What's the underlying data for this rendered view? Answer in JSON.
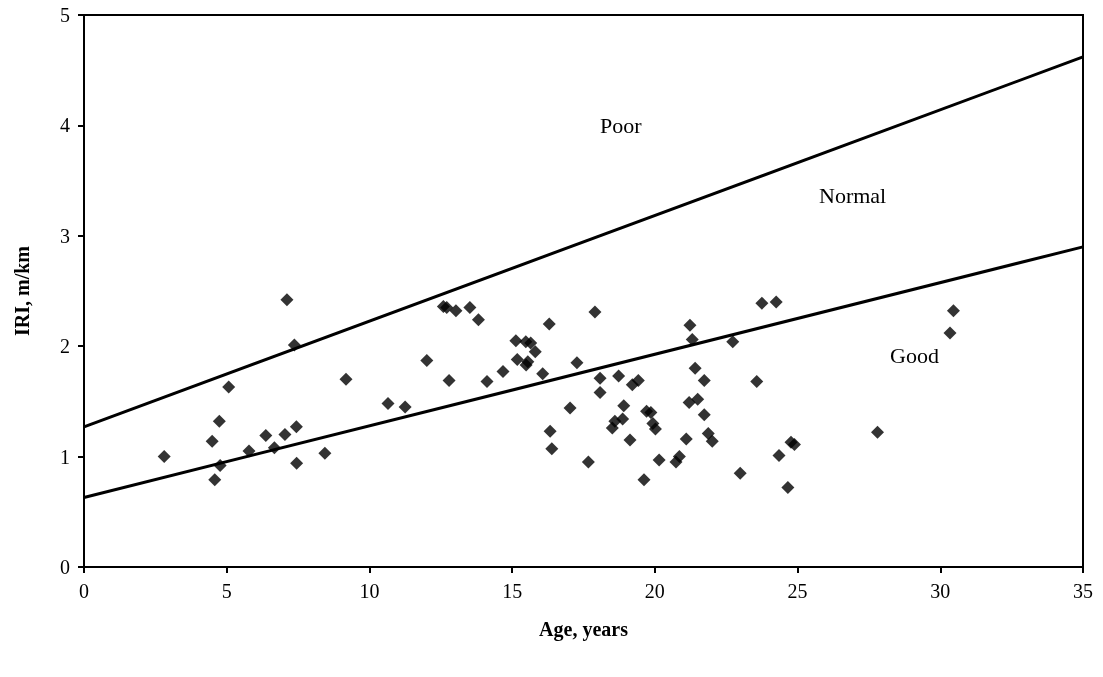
{
  "chart_data": {
    "type": "scatter",
    "xlabel": "Age, years",
    "ylabel": "IRI, m/km",
    "xlim": [
      0,
      35
    ],
    "xticks": [
      0,
      5,
      10,
      15,
      20,
      25,
      30,
      35
    ],
    "ylim": [
      0,
      5
    ],
    "yticks": [
      0,
      1,
      2,
      3,
      4,
      5
    ],
    "grid": false,
    "marker": "diamond",
    "series": [
      {
        "color": "#000000",
        "x": [
          2.81,
          4.49,
          4.58,
          4.74,
          4.77,
          5.07,
          5.78,
          6.37,
          6.67,
          7.04,
          7.11,
          7.37,
          7.44,
          7.45,
          8.44,
          9.18,
          10.65,
          11.25,
          12.01,
          12.59,
          12.71,
          13.03,
          13.52,
          13.82,
          12.79,
          14.12,
          14.68,
          15.13,
          15.18,
          15.48,
          15.65,
          15.81,
          15.55,
          15.49,
          16.07,
          16.3,
          16.33,
          16.39,
          17.03,
          17.27,
          17.67,
          17.9,
          18.08,
          18.08,
          18.73,
          18.91,
          19.21,
          19.42,
          18.51,
          18.6,
          18.87,
          19.13,
          19.62,
          19.71,
          19.86,
          19.93,
          20.02,
          20.15,
          20.74,
          20.86,
          21.1,
          21.2,
          21.23,
          21.31,
          21.41,
          21.5,
          21.73,
          21.73,
          21.87,
          22.01,
          22.73,
          22.99,
          23.57,
          23.75,
          24.25,
          24.35,
          24.66,
          24.77,
          24.89,
          27.8,
          30.34,
          30.46
        ],
        "values": [
          1.0,
          1.14,
          0.79,
          1.32,
          0.92,
          1.63,
          1.05,
          1.19,
          1.08,
          1.2,
          2.42,
          2.01,
          1.27,
          0.94,
          1.03,
          1.7,
          1.48,
          1.45,
          1.87,
          2.36,
          2.35,
          2.32,
          2.35,
          2.24,
          1.69,
          1.68,
          1.77,
          2.05,
          1.88,
          2.04,
          2.03,
          1.95,
          1.86,
          1.83,
          1.75,
          2.2,
          1.23,
          1.07,
          1.44,
          1.85,
          0.95,
          2.31,
          1.71,
          1.58,
          1.73,
          1.46,
          1.65,
          1.69,
          1.26,
          1.32,
          1.34,
          1.15,
          0.79,
          1.41,
          1.4,
          1.3,
          1.25,
          0.97,
          0.95,
          1.0,
          1.16,
          1.49,
          2.19,
          2.06,
          1.8,
          1.52,
          1.69,
          1.38,
          1.21,
          1.14,
          2.04,
          0.85,
          1.68,
          2.39,
          2.4,
          1.01,
          0.72,
          1.13,
          1.11,
          1.22,
          2.12,
          2.32
        ]
      },
      {
        "type": "line",
        "color": "#000000",
        "marker": "none",
        "x": [
          0,
          35
        ],
        "values": [
          1.27,
          4.62
        ]
      },
      {
        "type": "line",
        "color": "#000000",
        "marker": "none",
        "x": [
          0,
          35
        ],
        "values": [
          0.63,
          2.9
        ]
      }
    ],
    "annotations": [
      "Poor",
      "Normal",
      "Good"
    ]
  }
}
